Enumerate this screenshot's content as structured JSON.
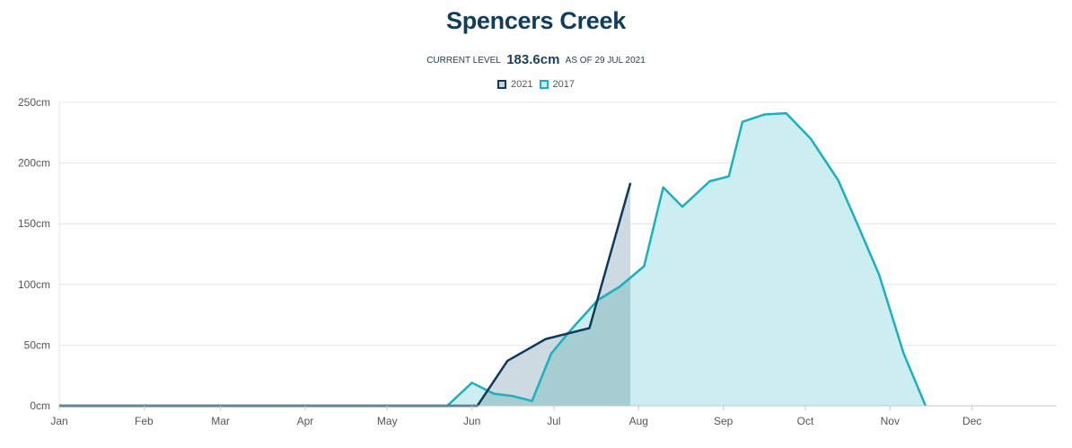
{
  "header": {
    "title": "Spencers Creek",
    "current_prefix": "CURRENT LEVEL",
    "current_value": "183.6cm",
    "as_of": "AS OF 29 JUL 2021"
  },
  "colors": {
    "series_2021": "#0e3a5b",
    "series_2017": "#19b1bd",
    "fill_2021": "#c9d6de",
    "fill_2017": "#cdeef0",
    "overlap": "#a6cdd2"
  },
  "chart_data": {
    "type": "area",
    "title": "Spencers Creek",
    "xlabel": "",
    "ylabel": "",
    "x_ticks": [
      "Jan",
      "Feb",
      "Mar",
      "Apr",
      "May",
      "Jun",
      "Jul",
      "Aug",
      "Sep",
      "Oct",
      "Nov",
      "Dec"
    ],
    "y_ticks": [
      "0cm",
      "50cm",
      "100cm",
      "150cm",
      "200cm",
      "250cm"
    ],
    "ylim": [
      0,
      250
    ],
    "xlim_days": [
      0,
      365
    ],
    "grid": true,
    "legend_position": "top-center",
    "series": [
      {
        "name": "2021",
        "points": [
          [
            "Jan 1",
            0
          ],
          [
            "Jun 3",
            0
          ],
          [
            "Jun 14",
            37
          ],
          [
            "Jun 28",
            55
          ],
          [
            "Jul 14",
            64
          ],
          [
            "Jul 29",
            183.6
          ]
        ]
      },
      {
        "name": "2017",
        "points": [
          [
            "Jan 1",
            0
          ],
          [
            "May 23",
            0
          ],
          [
            "Jun 1",
            19
          ],
          [
            "Jun 9",
            10
          ],
          [
            "Jun 16",
            8
          ],
          [
            "Jun 23",
            4
          ],
          [
            "Jun 30",
            43
          ],
          [
            "Jul 7",
            62
          ],
          [
            "Jul 17",
            87
          ],
          [
            "Jul 25",
            98
          ],
          [
            "Aug 3",
            115
          ],
          [
            "Aug 10",
            180
          ],
          [
            "Aug 17",
            164
          ],
          [
            "Aug 27",
            185
          ],
          [
            "Sep 3",
            189
          ],
          [
            "Sep 8",
            234
          ],
          [
            "Sep 16",
            240
          ],
          [
            "Sep 24",
            241
          ],
          [
            "Oct 3",
            220
          ],
          [
            "Oct 13",
            186
          ],
          [
            "Oct 20",
            150
          ],
          [
            "Oct 28",
            108
          ],
          [
            "Nov 6",
            43
          ],
          [
            "Nov 14",
            0
          ]
        ]
      }
    ]
  }
}
